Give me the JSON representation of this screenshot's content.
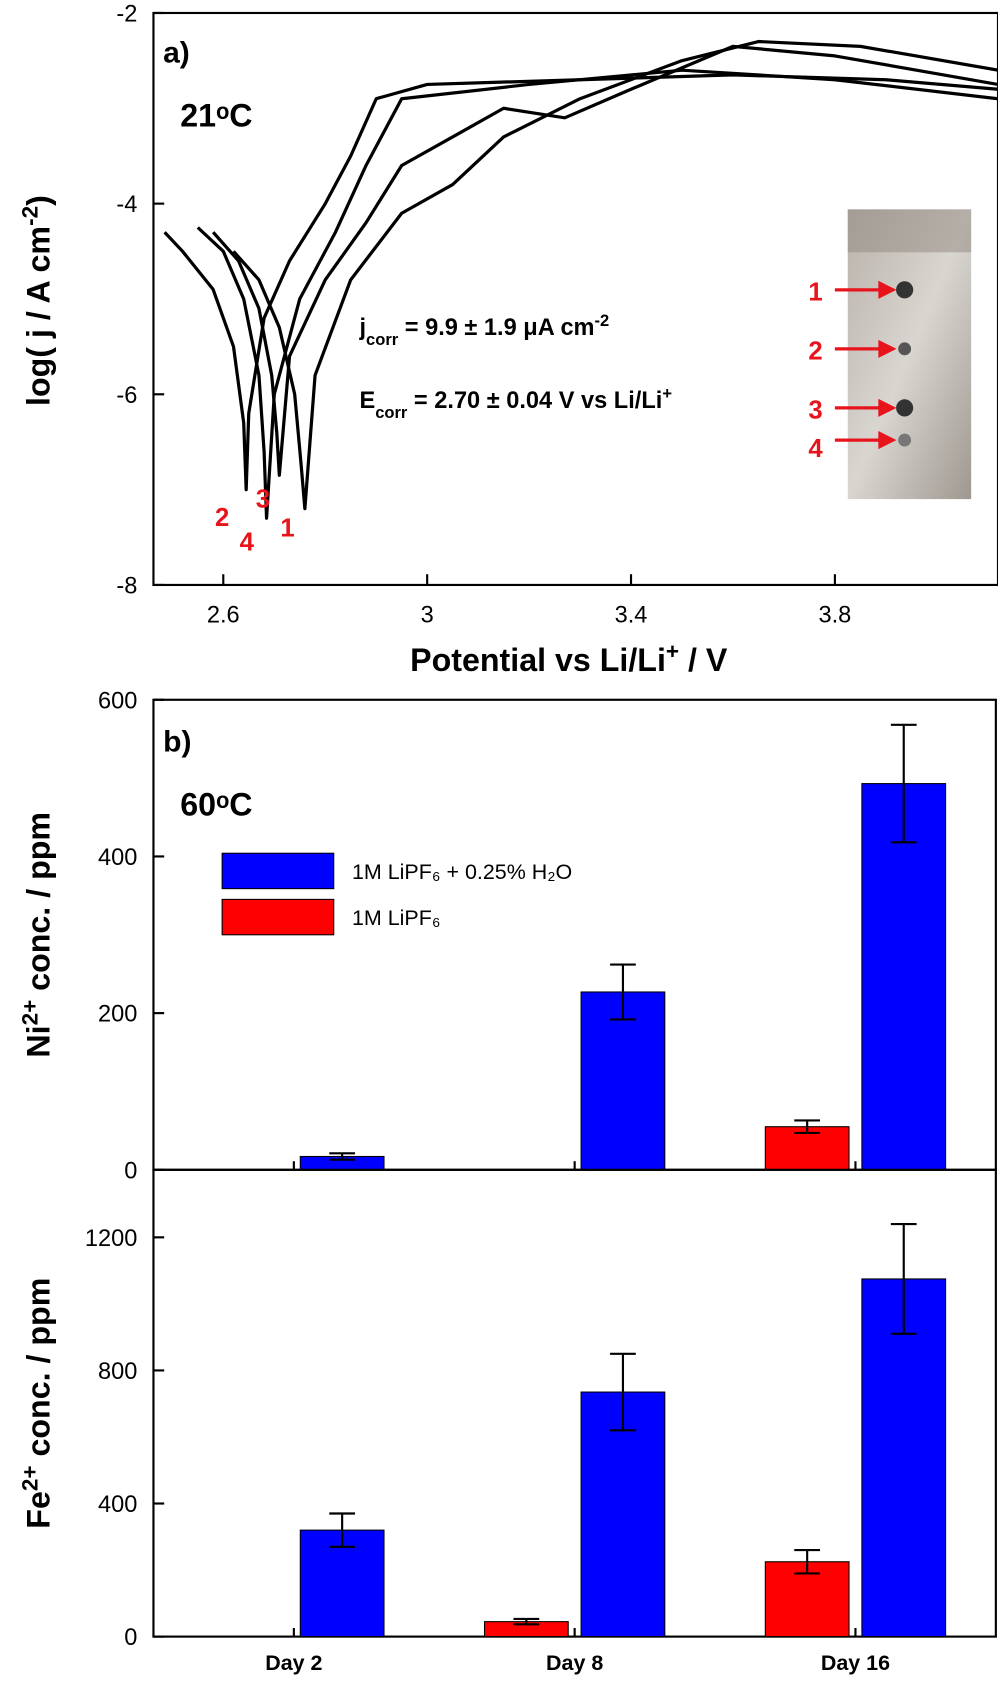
{
  "chart_data": [
    {
      "type": "line",
      "panel_label": "a)",
      "temperature": "21ᵒC",
      "x_label": [
        {
          "text": "Potential vs Li/Li"
        },
        {
          "text": "+",
          "script": "super"
        },
        {
          "text": " / V"
        }
      ],
      "y_label": [
        {
          "text": "log( j / A cm"
        },
        {
          "text": "-2",
          "script": "super"
        },
        {
          "text": ")"
        }
      ],
      "annotations": [
        [
          {
            "text": "j"
          },
          {
            "text": "corr",
            "script": "sub"
          },
          {
            "text": " = 9.9 ± 1.9 μA cm"
          },
          {
            "text": "-2",
            "script": "super"
          }
        ],
        [
          {
            "text": "E"
          },
          {
            "text": "corr",
            "script": "sub"
          },
          {
            "text": " = 2.70 ± 0.04 V vs Li/Li"
          },
          {
            "text": "+",
            "script": "super"
          }
        ]
      ],
      "inset_labels": [
        "1",
        "2",
        "3",
        "4"
      ],
      "label_color": "#e8141c",
      "xlim": [
        2.463,
        4.12
      ],
      "xticks": [
        2.6,
        3,
        3.4,
        3.8
      ],
      "ylim": [
        -8,
        -2
      ],
      "yticks": [
        -8,
        -6,
        -4,
        -2
      ],
      "series": [
        {
          "name": "2",
          "color": "#000000",
          "x": [
            2.485,
            2.52,
            2.58,
            2.62,
            2.64,
            2.645,
            2.65,
            2.68,
            2.73,
            2.8,
            2.85,
            2.9,
            3.0,
            3.3,
            3.6,
            3.9,
            4.12
          ],
          "values": [
            -4.3,
            -4.5,
            -4.9,
            -5.5,
            -6.3,
            -7.0,
            -6.2,
            -5.2,
            -4.6,
            -4.0,
            -3.5,
            -2.9,
            -2.75,
            -2.7,
            -2.65,
            -2.7,
            -2.8
          ]
        },
        {
          "name": "4",
          "color": "#000000",
          "x": [
            2.55,
            2.6,
            2.64,
            2.67,
            2.68,
            2.685,
            2.7,
            2.75,
            2.82,
            2.88,
            2.95,
            3.2,
            3.5,
            3.8,
            4.12
          ],
          "values": [
            -4.25,
            -4.5,
            -5.0,
            -5.8,
            -6.6,
            -7.3,
            -6.0,
            -5.0,
            -4.3,
            -3.6,
            -2.9,
            -2.75,
            -2.6,
            -2.7,
            -2.9
          ]
        },
        {
          "name": "3",
          "color": "#000000",
          "x": [
            2.58,
            2.63,
            2.67,
            2.695,
            2.705,
            2.71,
            2.73,
            2.8,
            2.88,
            2.95,
            3.05,
            3.15,
            3.27,
            3.4,
            3.6,
            3.8,
            4.12
          ],
          "values": [
            -4.3,
            -4.6,
            -5.1,
            -5.8,
            -6.4,
            -6.85,
            -5.6,
            -4.8,
            -4.2,
            -3.6,
            -3.3,
            -3.0,
            -3.1,
            -2.8,
            -2.35,
            -2.45,
            -2.75
          ]
        },
        {
          "name": "1",
          "color": "#000000",
          "x": [
            2.62,
            2.67,
            2.71,
            2.74,
            2.752,
            2.76,
            2.78,
            2.85,
            2.95,
            3.05,
            3.15,
            3.3,
            3.5,
            3.65,
            3.85,
            4.12
          ],
          "values": [
            -4.5,
            -4.8,
            -5.3,
            -6.0,
            -6.7,
            -7.2,
            -5.8,
            -4.8,
            -4.1,
            -3.8,
            -3.3,
            -2.9,
            -2.5,
            -2.3,
            -2.35,
            -2.6
          ]
        }
      ]
    },
    {
      "type": "bar",
      "panel_label": "b)",
      "temperature": "60ᵒC",
      "y_label": [
        {
          "text": "Ni"
        },
        {
          "text": "2+",
          "script": "super"
        },
        {
          "text": " conc. / ppm"
        }
      ],
      "ylim": [
        0,
        600
      ],
      "yticks": [
        0,
        200,
        400,
        600
      ],
      "series": [
        {
          "name": "1M LiPF₆",
          "color": "#ff0000",
          "values": [
            null,
            null,
            55
          ],
          "errors": [
            null,
            null,
            8
          ]
        },
        {
          "name": "1M LiPF₆ + 0.25% H₂O",
          "color": "#0000ff",
          "values": [
            17,
            227,
            493
          ],
          "errors": [
            4,
            35,
            75
          ]
        }
      ]
    },
    {
      "type": "bar",
      "y_label": [
        {
          "text": "Fe"
        },
        {
          "text": "2+",
          "script": "super"
        },
        {
          "text": " conc. / ppm"
        }
      ],
      "categories": [
        "Day 2",
        "Day 8",
        "Day 16"
      ],
      "ylim": [
        0,
        1403
      ],
      "yticks": [
        0,
        400,
        800,
        1200
      ],
      "series": [
        {
          "color": "#ff0000",
          "values": [
            null,
            45,
            225
          ],
          "errors": [
            null,
            8,
            35
          ]
        },
        {
          "color": "#0000ff",
          "values": [
            320,
            735,
            1075
          ],
          "errors": [
            50,
            115,
            165
          ]
        }
      ]
    }
  ]
}
